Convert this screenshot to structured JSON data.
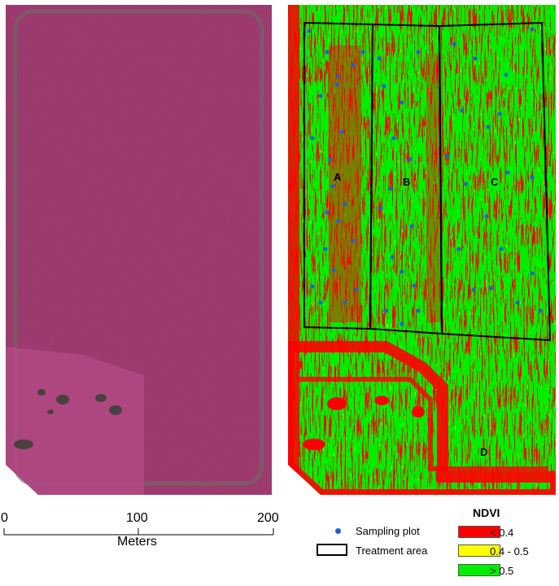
{
  "colors": {
    "false_color_magenta": "#a33f72",
    "ndvi_low": "#ff0000",
    "ndvi_mid": "#ffff00",
    "ndvi_high": "#00ee00",
    "sampling_point": "#1f5fe0",
    "treatment_outline": "#000000"
  },
  "treatment_labels": [
    "A",
    "B",
    "C",
    "D"
  ],
  "scale_bar": {
    "ticks": [
      "0",
      "100",
      "200"
    ],
    "unit_label": "Meters"
  },
  "legend": {
    "sampling_plot_label": "Sampling plot",
    "treatment_area_label": "Treatment area",
    "ndvi_title": "NDVI",
    "classes": [
      {
        "label": "< 0.4",
        "color": "#ff0000"
      },
      {
        "label": "0.4 - 0.5",
        "color": "#ffff00"
      },
      {
        "label": "> 0.5",
        "color": "#00ee00"
      }
    ]
  }
}
